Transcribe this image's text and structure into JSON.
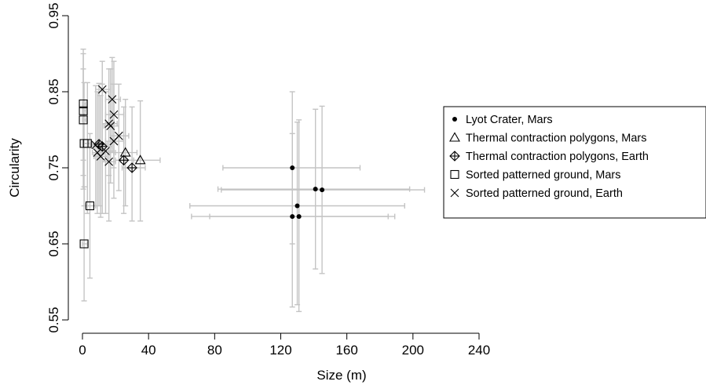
{
  "chart_data": {
    "type": "scatter",
    "title": "",
    "xlabel": "Size (m)",
    "ylabel": "Circularity",
    "xlim": [
      0,
      240
    ],
    "ylim": [
      0.55,
      0.95
    ],
    "xticks": [
      "0",
      "40",
      "80",
      "120",
      "160",
      "200",
      "240"
    ],
    "xtick_values": [
      0,
      40,
      80,
      120,
      160,
      200,
      240
    ],
    "yticks": [
      "0.55",
      "0.65",
      "0.75",
      "0.85",
      "0.95"
    ],
    "ytick_values": [
      0.55,
      0.65,
      0.75,
      0.85,
      0.95
    ],
    "grid": false,
    "legend_position": "right",
    "error_bar_color": "#c4c4c4",
    "series": [
      {
        "name": "Lyot Crater, Mars",
        "marker": "filled-circle",
        "points": [
          {
            "x": 127,
            "y": 0.75,
            "xerr": [
              85,
              168
            ],
            "yerr": [
              0.65,
              0.85
            ]
          },
          {
            "x": 141,
            "y": 0.722,
            "xerr": [
              82,
              198
            ],
            "yerr": [
              0.617,
              0.827
            ]
          },
          {
            "x": 145,
            "y": 0.721,
            "xerr": [
              84,
              207
            ],
            "yerr": [
              0.611,
              0.831
            ]
          },
          {
            "x": 130,
            "y": 0.7,
            "xerr": [
              65,
              195
            ],
            "yerr": [
              0.57,
              0.81
            ]
          },
          {
            "x": 127,
            "y": 0.686,
            "xerr": [
              66,
              185
            ],
            "yerr": [
              0.567,
              0.795
            ]
          },
          {
            "x": 131,
            "y": 0.686,
            "xerr": [
              77,
              189
            ],
            "yerr": [
              0.561,
              0.813
            ]
          }
        ]
      },
      {
        "name": "Thermal contraction polygons, Mars",
        "marker": "open-triangle",
        "points": [
          {
            "x": 35,
            "y": 0.76,
            "xerr": [
              23,
              47
            ],
            "yerr": [
              0.68,
              0.838
            ]
          },
          {
            "x": 26,
            "y": 0.77,
            "xerr": [
              20,
              33
            ],
            "yerr": [
              0.7,
              0.84
            ]
          }
        ]
      },
      {
        "name": "Thermal contraction polygons, Earth",
        "marker": "diamond-plus",
        "points": [
          {
            "x": 10,
            "y": 0.781,
            "xerr": [
              6,
              15
            ],
            "yerr": [
              0.7,
              0.861
            ]
          },
          {
            "x": 12,
            "y": 0.778,
            "xerr": [
              7,
              18
            ],
            "yerr": [
              0.69,
              0.86
            ]
          },
          {
            "x": 25,
            "y": 0.76,
            "xerr": [
              20,
              31
            ],
            "yerr": [
              0.69,
              0.83
            ]
          },
          {
            "x": 30,
            "y": 0.75,
            "xerr": [
              24,
              38
            ],
            "yerr": [
              0.68,
              0.83
            ]
          }
        ]
      },
      {
        "name": "Sorted patterned ground, Mars",
        "marker": "open-square",
        "points": [
          {
            "x": 0.5,
            "y": 0.834,
            "xerr": [
              0,
              2
            ],
            "yerr": [
              0.76,
              0.906
            ]
          },
          {
            "x": 0.5,
            "y": 0.825,
            "xerr": [
              0,
              2
            ],
            "yerr": [
              0.74,
              0.9
            ]
          },
          {
            "x": 0.5,
            "y": 0.813,
            "xerr": [
              0,
              2
            ],
            "yerr": [
              0.722,
              0.88
            ]
          },
          {
            "x": 1,
            "y": 0.782,
            "xerr": [
              0,
              3
            ],
            "yerr": [
              0.7,
              0.862
            ]
          },
          {
            "x": 3,
            "y": 0.782,
            "xerr": [
              1,
              6
            ],
            "yerr": [
              0.69,
              0.862
            ]
          },
          {
            "x": 4.5,
            "y": 0.7,
            "xerr": [
              2,
              8
            ],
            "yerr": [
              0.605,
              0.795
            ]
          },
          {
            "x": 1,
            "y": 0.65,
            "xerr": [
              0,
              3
            ],
            "yerr": [
              0.575,
              0.725
            ]
          }
        ]
      },
      {
        "name": "Sorted patterned ground, Earth",
        "marker": "x-cross",
        "points": [
          {
            "x": 12,
            "y": 0.853,
            "xerr": [
              8,
              17
            ],
            "yerr": [
              0.78,
              0.89
            ]
          },
          {
            "x": 18,
            "y": 0.84,
            "xerr": [
              14,
              23
            ],
            "yerr": [
              0.77,
              0.895
            ]
          },
          {
            "x": 19,
            "y": 0.82,
            "xerr": [
              14,
              25
            ],
            "yerr": [
              0.75,
              0.89
            ]
          },
          {
            "x": 16,
            "y": 0.808,
            "xerr": [
              12,
              21
            ],
            "yerr": [
              0.74,
              0.88
            ]
          },
          {
            "x": 17,
            "y": 0.805,
            "xerr": [
              13,
              22
            ],
            "yerr": [
              0.73,
              0.88
            ]
          },
          {
            "x": 22,
            "y": 0.792,
            "xerr": [
              17,
              28
            ],
            "yerr": [
              0.72,
              0.86
            ]
          },
          {
            "x": 19,
            "y": 0.785,
            "xerr": [
              14,
              25
            ],
            "yerr": [
              0.71,
              0.86
            ]
          },
          {
            "x": 8,
            "y": 0.78,
            "xerr": [
              5,
              12
            ],
            "yerr": [
              0.7,
              0.858
            ]
          },
          {
            "x": 14,
            "y": 0.772,
            "xerr": [
              10,
              19
            ],
            "yerr": [
              0.69,
              0.85
            ]
          },
          {
            "x": 9,
            "y": 0.77,
            "xerr": [
              6,
              13
            ],
            "yerr": [
              0.69,
              0.85
            ]
          },
          {
            "x": 11,
            "y": 0.765,
            "xerr": [
              7,
              15
            ],
            "yerr": [
              0.685,
              0.845
            ]
          },
          {
            "x": 16,
            "y": 0.758,
            "xerr": [
              12,
              20
            ],
            "yerr": [
              0.68,
              0.84
            ]
          }
        ]
      }
    ]
  }
}
